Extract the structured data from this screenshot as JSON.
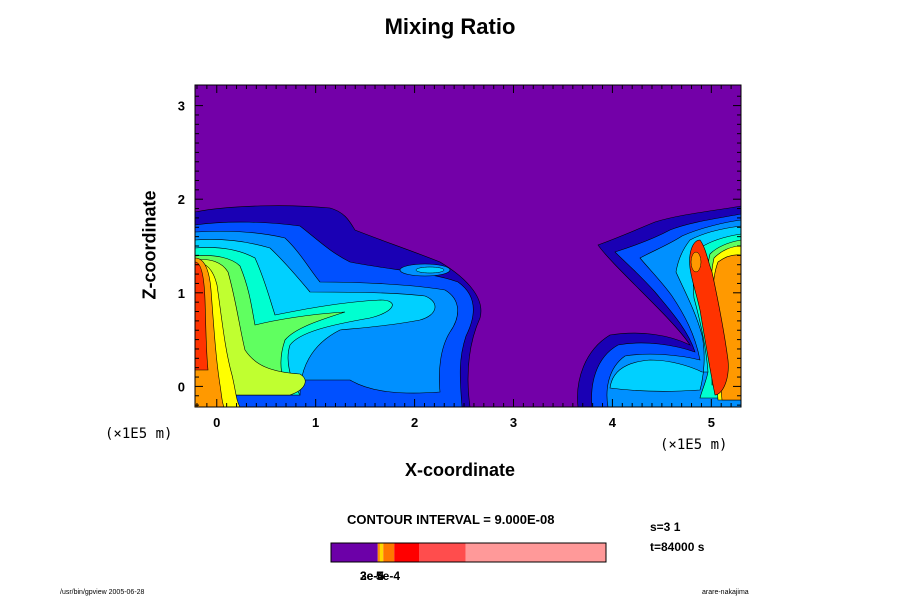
{
  "chart_data": {
    "type": "heatmap",
    "title": "Mixing Ratio",
    "xlabel": "X-coordinate",
    "ylabel": "Z-coordinate",
    "x_ticks": [
      "0",
      "1",
      "2",
      "3",
      "4",
      "5"
    ],
    "y_ticks": [
      "0",
      "1",
      "2",
      "3"
    ],
    "x_unit": "(×1E5  m)",
    "y_unit": "(×1E5  m)",
    "xlim": [
      -0.22,
      5.3
    ],
    "ylim": [
      -0.22,
      3.22
    ],
    "contour_interval": "CONTOUR INTERVAL = 9.000E-08",
    "step": "s=3 1",
    "time": "t=84000 s",
    "colorbar_labels": [
      "2e-5",
      "3e-4",
      "5e-4"
    ],
    "colorbar_colors": [
      "#6c00a8",
      "#ff9100",
      "#ffd700",
      "#ff7700",
      "#ff0000",
      "#ff4d4d",
      "#ff9999"
    ],
    "colors": {
      "background": "#7300a8",
      "navy": "#1a00b4",
      "blue": "#0050ff",
      "mid_blue": "#0090ff",
      "cyan": "#00d0ff",
      "aqua": "#00ffd0",
      "green": "#60ff60",
      "yellow_green": "#c0ff30",
      "yellow": "#ffff00",
      "orange": "#ff9900",
      "red": "#ff3300"
    }
  },
  "footer": {
    "left": "/usr/bin/gpview 2005-06-28",
    "right": "arare-nakajima"
  }
}
